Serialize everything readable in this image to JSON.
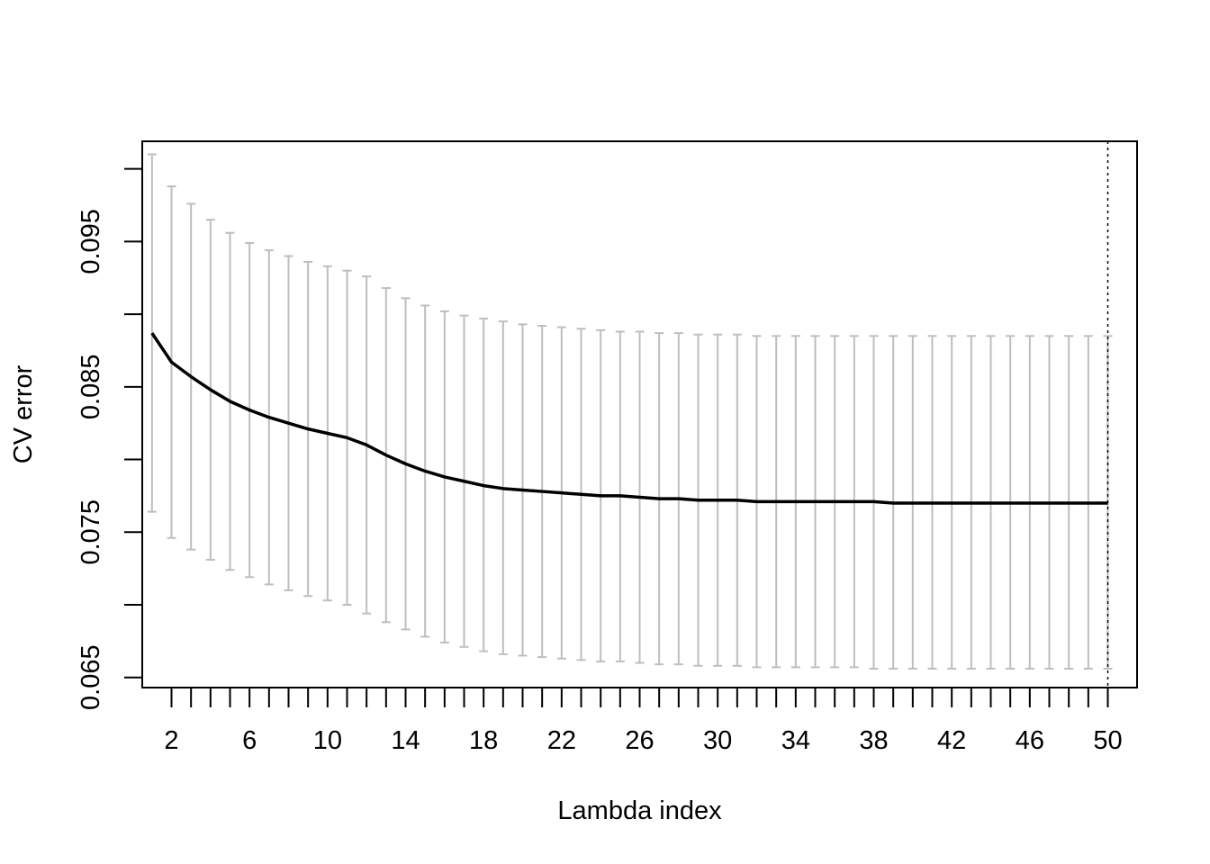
{
  "chart_data": {
    "type": "line",
    "title": "",
    "xlabel": "Lambda index",
    "ylabel": "CV error",
    "xlim": [
      0.5,
      51.5
    ],
    "ylim": [
      0.0643,
      0.1019
    ],
    "x_ticks_minor": [
      2,
      3,
      4,
      5,
      6,
      7,
      8,
      9,
      10,
      11,
      12,
      13,
      14,
      15,
      16,
      17,
      18,
      19,
      20,
      21,
      22,
      23,
      24,
      25,
      26,
      27,
      28,
      29,
      30,
      31,
      32,
      33,
      34,
      35,
      36,
      37,
      38,
      39,
      40,
      41,
      42,
      43,
      44,
      45,
      46,
      47,
      48,
      49,
      50
    ],
    "x_tick_labels": [
      "2",
      "6",
      "10",
      "14",
      "18",
      "22",
      "26",
      "30",
      "34",
      "38",
      "42",
      "46",
      "50"
    ],
    "y_ticks": [
      0.065,
      0.07,
      0.075,
      0.08,
      0.085,
      0.09,
      0.095,
      0.1
    ],
    "y_tick_labels": [
      "0.065",
      "0.075",
      "0.085",
      "0.095"
    ],
    "grid": false,
    "series": [
      {
        "values": [
          0.0887,
          0.0867,
          0.0857,
          0.0848,
          0.084,
          0.0834,
          0.0829,
          0.0825,
          0.0821,
          0.0818,
          0.0815,
          0.081,
          0.0803,
          0.0797,
          0.0792,
          0.0788,
          0.0785,
          0.0782,
          0.078,
          0.0779,
          0.0778,
          0.0777,
          0.0776,
          0.0775,
          0.0775,
          0.0774,
          0.0773,
          0.0773,
          0.0772,
          0.0772,
          0.0772,
          0.0771,
          0.0771,
          0.0771,
          0.0771,
          0.0771,
          0.0771,
          0.0771,
          0.077,
          0.077,
          0.077,
          0.077,
          0.077,
          0.077,
          0.077,
          0.077,
          0.077,
          0.077,
          0.077,
          0.077
        ],
        "upper": [
          0.101,
          0.0988,
          0.0976,
          0.0965,
          0.0956,
          0.0949,
          0.0944,
          0.094,
          0.0936,
          0.0933,
          0.093,
          0.0926,
          0.0918,
          0.0911,
          0.0906,
          0.0902,
          0.0899,
          0.0897,
          0.0895,
          0.0893,
          0.0892,
          0.0891,
          0.089,
          0.0889,
          0.0888,
          0.0888,
          0.0887,
          0.0887,
          0.0886,
          0.0886,
          0.0886,
          0.0885,
          0.0885,
          0.0885,
          0.0885,
          0.0885,
          0.0885,
          0.0885,
          0.0885,
          0.0885,
          0.0885,
          0.0885,
          0.0885,
          0.0885,
          0.0885,
          0.0885,
          0.0885,
          0.0885,
          0.0885,
          0.0885
        ],
        "lower": [
          0.0764,
          0.0746,
          0.0738,
          0.0731,
          0.0724,
          0.0719,
          0.0714,
          0.071,
          0.0706,
          0.0703,
          0.07,
          0.0694,
          0.0688,
          0.0683,
          0.0678,
          0.0674,
          0.0671,
          0.0668,
          0.0666,
          0.0665,
          0.0664,
          0.0663,
          0.0662,
          0.0661,
          0.0661,
          0.066,
          0.0659,
          0.0659,
          0.0658,
          0.0658,
          0.0658,
          0.0657,
          0.0657,
          0.0657,
          0.0657,
          0.0657,
          0.0657,
          0.0656,
          0.0656,
          0.0656,
          0.0656,
          0.0656,
          0.0656,
          0.0656,
          0.0656,
          0.0656,
          0.0656,
          0.0656,
          0.0656,
          0.0656
        ]
      }
    ],
    "vline_x": 50,
    "colors": {
      "line": "#000000",
      "errorbar": "#bebebe",
      "vline": "#000000",
      "axis": "#000000"
    }
  }
}
